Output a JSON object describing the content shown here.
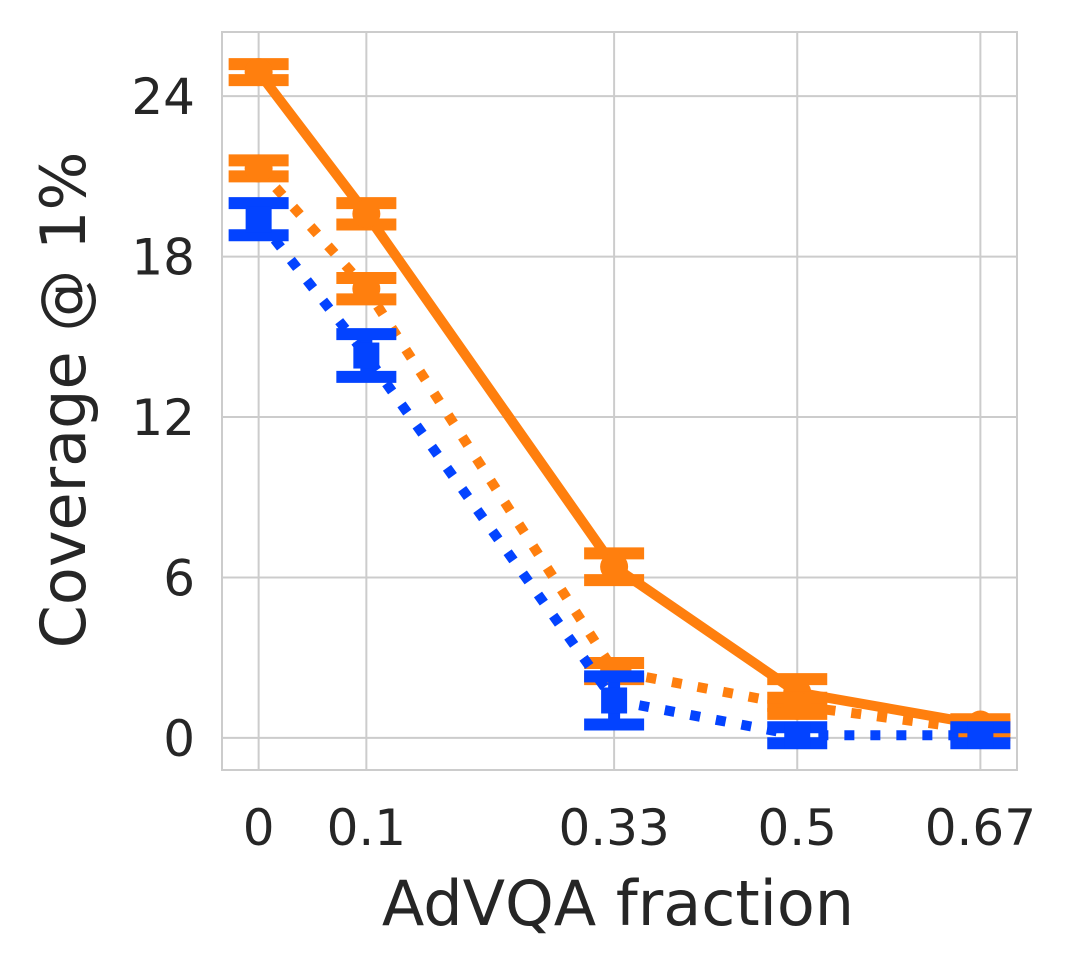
{
  "chart_data": {
    "type": "line",
    "title": "",
    "xlabel": "AdVQA fraction",
    "ylabel": "Coverage @ 1%",
    "x": [
      0,
      0.1,
      0.33,
      0.5,
      0.67
    ],
    "xtick_labels": [
      "0",
      "0.1",
      "0.33",
      "0.5",
      "0.67"
    ],
    "yticks": [
      0,
      6,
      12,
      18,
      24
    ],
    "ytick_labels": [
      "0",
      "6",
      "12",
      "18",
      "24"
    ],
    "xlim": [
      -0.034,
      0.704
    ],
    "ylim": [
      -1.2,
      26.4
    ],
    "grid": true,
    "legend": null,
    "series": [
      {
        "name": "orange-solid",
        "color": "#ff7f0e",
        "linestyle": "solid",
        "marker": "circle",
        "values": [
          24.9,
          19.6,
          6.4,
          1.7,
          0.5
        ],
        "err": [
          0.3,
          0.4,
          0.5,
          0.5,
          0.2
        ]
      },
      {
        "name": "orange-dotted",
        "color": "#ff7f0e",
        "linestyle": "dotted",
        "marker": "circle",
        "values": [
          21.3,
          16.8,
          2.5,
          1.2,
          0.3
        ],
        "err": [
          0.3,
          0.4,
          0.3,
          0.3,
          0.2
        ]
      },
      {
        "name": "blue-dotted",
        "color": "#0343ff",
        "linestyle": "dotted",
        "marker": "square",
        "values": [
          19.4,
          14.3,
          1.4,
          0.1,
          0.1
        ],
        "err": [
          0.6,
          0.8,
          0.9,
          0.3,
          0.3
        ]
      }
    ]
  }
}
